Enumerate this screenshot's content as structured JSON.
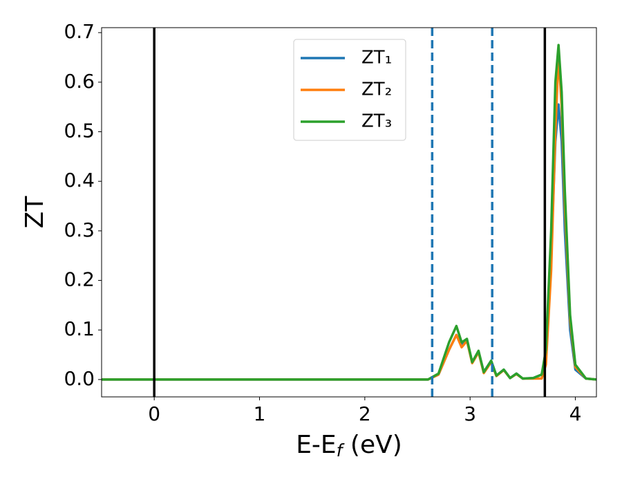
{
  "chart_data": {
    "type": "line",
    "xlabel": {
      "main": "E-E",
      "sub": "f",
      "rest": " (eV)"
    },
    "ylabel": "ZT",
    "x": [
      -0.5,
      2.6,
      2.7,
      2.8,
      2.87,
      2.92,
      2.97,
      3.02,
      3.08,
      3.13,
      3.2,
      3.25,
      3.32,
      3.38,
      3.44,
      3.5,
      3.6,
      3.68,
      3.72,
      3.77,
      3.81,
      3.84,
      3.87,
      3.9,
      3.95,
      4.0,
      4.1,
      4.2
    ],
    "series": [
      {
        "name": "ZT₁",
        "color": "#1f77b4",
        "values": [
          0,
          0,
          0.01,
          0.06,
          0.09,
          0.07,
          0.08,
          0.035,
          0.057,
          0.015,
          0.038,
          0.008,
          0.02,
          0.003,
          0.012,
          0.002,
          0.003,
          0.01,
          0.05,
          0.25,
          0.48,
          0.555,
          0.48,
          0.3,
          0.1,
          0.02,
          0.002,
          0
        ]
      },
      {
        "name": "ZT₂",
        "color": "#ff7f0e",
        "values": [
          0,
          0,
          0.01,
          0.06,
          0.09,
          0.065,
          0.078,
          0.033,
          0.055,
          0.013,
          0.035,
          0.007,
          0.019,
          0.003,
          0.011,
          0.002,
          0.002,
          0.002,
          0.03,
          0.22,
          0.5,
          0.655,
          0.55,
          0.35,
          0.12,
          0.025,
          0.002,
          0
        ]
      },
      {
        "name": "ZT₃",
        "color": "#2ca02c",
        "values": [
          0,
          0,
          0.012,
          0.075,
          0.108,
          0.075,
          0.082,
          0.035,
          0.058,
          0.015,
          0.038,
          0.008,
          0.02,
          0.003,
          0.012,
          0.002,
          0.003,
          0.01,
          0.06,
          0.3,
          0.6,
          0.675,
          0.58,
          0.38,
          0.13,
          0.03,
          0.002,
          0
        ]
      }
    ],
    "vlines": [
      {
        "x": 0,
        "color": "#000000",
        "style": "solid"
      },
      {
        "x": 2.64,
        "color": "#1f77b4",
        "style": "dashed"
      },
      {
        "x": 3.21,
        "color": "#1f77b4",
        "style": "dashed"
      },
      {
        "x": 3.71,
        "color": "#000000",
        "style": "solid"
      }
    ],
    "xlim": [
      -0.5,
      4.2
    ],
    "xticks": [
      0,
      1,
      2,
      3,
      4
    ],
    "ylim": [
      -0.035,
      0.71
    ],
    "yticks": [
      {
        "value": 0,
        "label": "0.0"
      },
      0.1,
      0.2,
      0.3,
      0.4,
      0.5,
      0.6,
      0.7
    ],
    "legend": "upper-center",
    "grid": false
  }
}
